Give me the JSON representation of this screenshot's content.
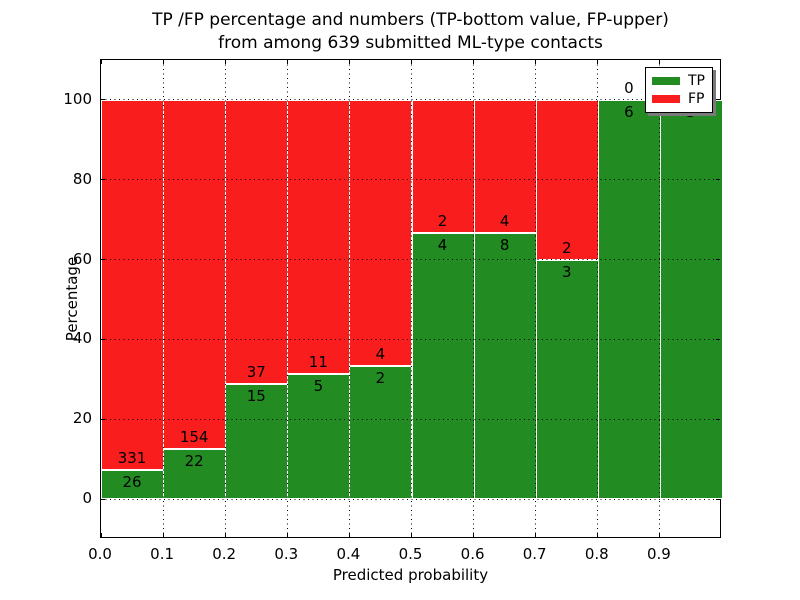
{
  "title": {
    "line1": "TP /FP percentage and numbers (TP-bottom value, FP-upper)",
    "line2": "from among 639 submitted ML-type contacts"
  },
  "axes": {
    "xlabel": "Predicted probability",
    "ylabel": "Percentage"
  },
  "legend": {
    "position": "upper right",
    "items": [
      {
        "label": "TP",
        "color": "#228c22"
      },
      {
        "label": "FP",
        "color": "#f91d1d"
      }
    ]
  },
  "chart_data": {
    "type": "bar",
    "stacked": true,
    "title": "TP /FP percentage and numbers (TP-bottom value, FP-upper)\nfrom among 639 submitted ML-type contacts",
    "xlabel": "Predicted probability",
    "ylabel": "Percentage",
    "xlim": [
      0.0,
      1.0
    ],
    "ylim": [
      -10,
      110
    ],
    "grid": "dotted black, both axes",
    "background": "#ffffff",
    "bar_edge_color": "#ffffff",
    "xticks": [
      "0.0",
      "0.1",
      "0.2",
      "0.3",
      "0.4",
      "0.5",
      "0.6",
      "0.7",
      "0.8",
      "0.9"
    ],
    "yticks": [
      0,
      20,
      40,
      60,
      80,
      100
    ],
    "series": [
      {
        "name": "TP",
        "color": "#228c22"
      },
      {
        "name": "FP",
        "color": "#f91d1d"
      }
    ],
    "total_contacts": 639,
    "bins": [
      {
        "range": "0.0-0.1",
        "tp": 26,
        "fp": 331,
        "tp_pct": 7.28
      },
      {
        "range": "0.1-0.2",
        "tp": 22,
        "fp": 154,
        "tp_pct": 12.5
      },
      {
        "range": "0.2-0.3",
        "tp": 15,
        "fp": 37,
        "tp_pct": 28.85
      },
      {
        "range": "0.3-0.4",
        "tp": 5,
        "fp": 11,
        "tp_pct": 31.25
      },
      {
        "range": "0.4-0.5",
        "tp": 2,
        "fp": 4,
        "tp_pct": 33.33
      },
      {
        "range": "0.5-0.6",
        "tp": 4,
        "fp": 2,
        "tp_pct": 66.67
      },
      {
        "range": "0.6-0.7",
        "tp": 8,
        "fp": 4,
        "tp_pct": 66.67
      },
      {
        "range": "0.7-0.8",
        "tp": 3,
        "fp": 2,
        "tp_pct": 60.0
      },
      {
        "range": "0.8-0.9",
        "tp": 6,
        "fp": 0,
        "tp_pct": 100.0
      },
      {
        "range": "0.9-1.0",
        "tp": 3,
        "fp": 0,
        "tp_pct": 100.0
      }
    ]
  }
}
